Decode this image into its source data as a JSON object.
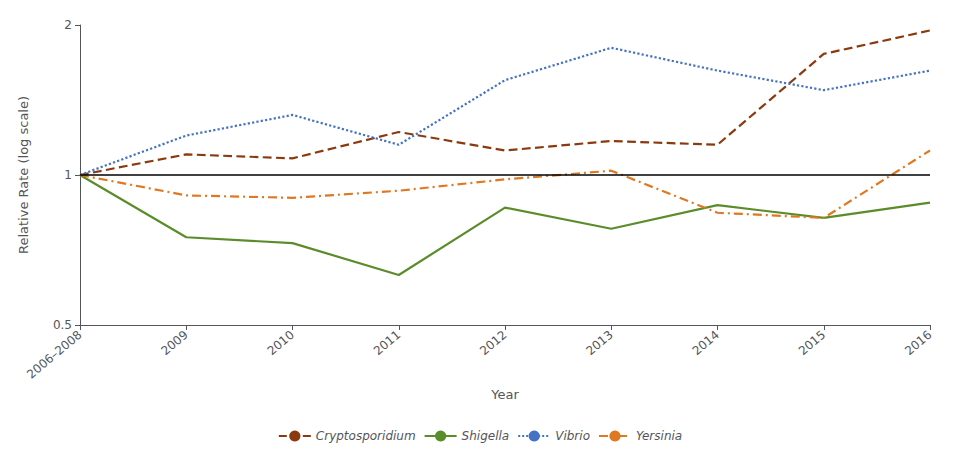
{
  "chart_data": {
    "type": "line",
    "categories": [
      "2006–2008",
      "2009",
      "2010",
      "2011",
      "2012",
      "2013",
      "2014",
      "2015",
      "2016"
    ],
    "series": [
      {
        "name": "Cryptosporidium",
        "color": "#8B3A0F",
        "line_style": "dashed",
        "values": [
          1.0,
          1.1,
          1.08,
          1.22,
          1.12,
          1.17,
          1.15,
          1.75,
          1.95
        ]
      },
      {
        "name": "Shigella",
        "color": "#5B8C2A",
        "line_style": "solid",
        "values": [
          1.0,
          0.75,
          0.73,
          0.63,
          0.86,
          0.78,
          0.87,
          0.82,
          0.88
        ]
      },
      {
        "name": "Vibrio",
        "color": "#4472C4",
        "line_style": "dotted",
        "values": [
          1.0,
          1.2,
          1.32,
          1.15,
          1.55,
          1.8,
          1.62,
          1.48,
          1.62
        ]
      },
      {
        "name": "Yersinia",
        "color": "#E07820",
        "line_style": "dashdot",
        "values": [
          1.0,
          0.91,
          0.9,
          0.93,
          0.98,
          1.02,
          0.84,
          0.82,
          1.12
        ]
      }
    ],
    "xlabel": "Year",
    "ylabel": "Relative Rate (log scale)",
    "log": "y",
    "ylim": [
      0.5,
      2.0
    ],
    "yticks": [
      0.5,
      1,
      2
    ],
    "reference_line": 1.0,
    "grid": false,
    "legend": "bottom"
  }
}
